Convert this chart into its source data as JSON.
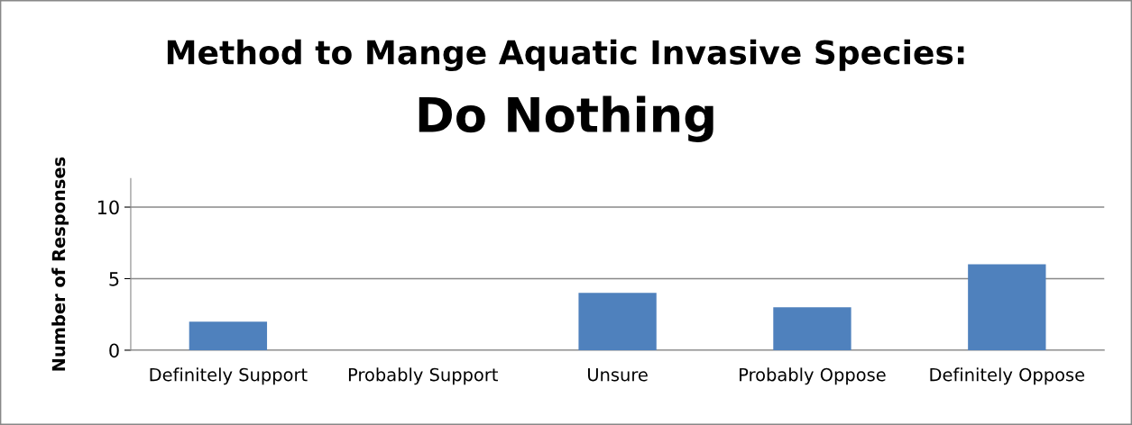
{
  "chart_data": {
    "type": "bar",
    "title": "Method to Mange Aquatic Invasive Species:",
    "subtitle": "Do Nothing",
    "ylabel": "Number of Responses",
    "categories": [
      "Definitely Support",
      "Probably Support",
      "Unsure",
      "Probably Oppose",
      "Definitely Oppose"
    ],
    "values": [
      2,
      0,
      4,
      3,
      6
    ],
    "color": "#4f81bd",
    "ylim": [
      0,
      12
    ],
    "yticks": [
      0,
      5,
      10
    ],
    "grid": "y",
    "legend": false
  }
}
